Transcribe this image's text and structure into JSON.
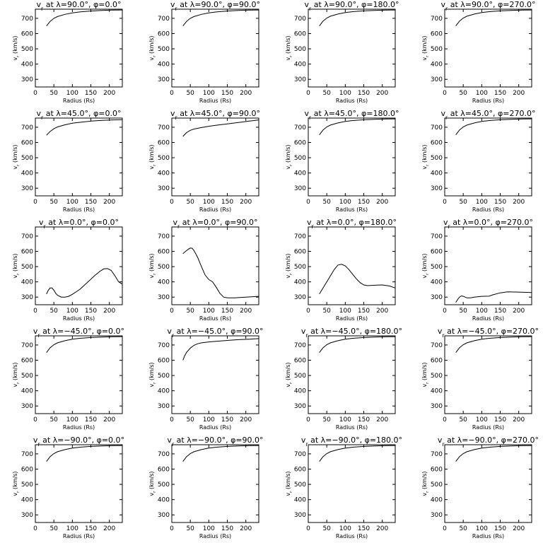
{
  "chart_data": [
    {
      "type": "line",
      "title": "v<sub>r</sub> at λ=90.0°, φ=0.0°",
      "title_parts": [
        "v",
        "r",
        " at λ=90.0°, φ=0.0°"
      ],
      "xlabel": "Radius (Rs)",
      "ylabel": "v<sub>r</sub> (km/s)",
      "ylabel_parts": [
        "v",
        "r",
        " (km/s)"
      ],
      "xlim": [
        0,
        235
      ],
      "ylim": [
        250,
        760
      ],
      "xticks": [
        0,
        50,
        100,
        150,
        200
      ],
      "yticks": [
        300,
        400,
        500,
        600,
        700
      ],
      "x": [
        30,
        40,
        50,
        60,
        80,
        100,
        120,
        150,
        180,
        210,
        235
      ],
      "y": [
        650,
        680,
        700,
        712,
        726,
        736,
        742,
        748,
        752,
        754,
        755
      ]
    },
    {
      "type": "line",
      "title": "",
      "title_parts": [
        "v",
        "r",
        " at λ=90.0°, φ=90.0°"
      ],
      "xlabel": "Radius (Rs)",
      "ylabel_parts": [
        "v",
        "r",
        " (km/s)"
      ],
      "xlim": [
        0,
        235
      ],
      "ylim": [
        250,
        760
      ],
      "xticks": [
        0,
        50,
        100,
        150,
        200
      ],
      "yticks": [
        300,
        400,
        500,
        600,
        700
      ],
      "x": [
        30,
        40,
        50,
        60,
        80,
        100,
        120,
        150,
        180,
        210,
        235
      ],
      "y": [
        650,
        680,
        700,
        712,
        726,
        736,
        742,
        748,
        752,
        754,
        755
      ]
    },
    {
      "type": "line",
      "title_parts": [
        "v",
        "r",
        " at λ=90.0°, φ=180.0°"
      ],
      "xlabel": "Radius (Rs)",
      "ylabel_parts": [
        "v",
        "r",
        " (km/s)"
      ],
      "xlim": [
        0,
        235
      ],
      "ylim": [
        250,
        760
      ],
      "xticks": [
        0,
        50,
        100,
        150,
        200
      ],
      "yticks": [
        300,
        400,
        500,
        600,
        700
      ],
      "x": [
        30,
        40,
        50,
        60,
        80,
        100,
        120,
        150,
        180,
        210,
        235
      ],
      "y": [
        650,
        682,
        702,
        714,
        728,
        738,
        744,
        749,
        752,
        754,
        755
      ]
    },
    {
      "type": "line",
      "title_parts": [
        "v",
        "r",
        " at λ=90.0°, φ=270.0°"
      ],
      "xlabel": "Radius (Rs)",
      "ylabel_parts": [
        "v",
        "r",
        " (km/s)"
      ],
      "xlim": [
        0,
        235
      ],
      "ylim": [
        250,
        760
      ],
      "xticks": [
        0,
        50,
        100,
        150,
        200
      ],
      "yticks": [
        300,
        400,
        500,
        600,
        700
      ],
      "x": [
        30,
        40,
        50,
        60,
        80,
        100,
        120,
        150,
        180,
        210,
        235
      ],
      "y": [
        650,
        682,
        702,
        714,
        728,
        738,
        744,
        749,
        752,
        754,
        755
      ]
    },
    {
      "type": "line",
      "title_parts": [
        "v",
        "r",
        " at λ=45.0°, φ=0.0°"
      ],
      "xlabel": "Radius (Rs)",
      "ylabel_parts": [
        "v",
        "r",
        " (km/s)"
      ],
      "xlim": [
        0,
        235
      ],
      "ylim": [
        250,
        760
      ],
      "xticks": [
        0,
        50,
        100,
        150,
        200
      ],
      "yticks": [
        300,
        400,
        500,
        600,
        700
      ],
      "x": [
        30,
        40,
        50,
        60,
        80,
        100,
        120,
        150,
        180,
        210,
        235
      ],
      "y": [
        648,
        672,
        690,
        702,
        716,
        726,
        732,
        740,
        745,
        748,
        750
      ]
    },
    {
      "type": "line",
      "title_parts": [
        "v",
        "r",
        " at λ=45.0°, φ=90.0°"
      ],
      "xlabel": "Radius (Rs)",
      "ylabel_parts": [
        "v",
        "r",
        " (km/s)"
      ],
      "xlim": [
        0,
        235
      ],
      "ylim": [
        250,
        760
      ],
      "xticks": [
        0,
        50,
        100,
        150,
        200
      ],
      "yticks": [
        300,
        400,
        500,
        600,
        700
      ],
      "x": [
        30,
        40,
        50,
        60,
        80,
        100,
        120,
        150,
        180,
        210,
        235
      ],
      "y": [
        640,
        665,
        680,
        688,
        698,
        706,
        713,
        722,
        731,
        740,
        748
      ]
    },
    {
      "type": "line",
      "title_parts": [
        "v",
        "r",
        " at λ=45.0°, φ=180.0°"
      ],
      "xlabel": "Radius (Rs)",
      "ylabel_parts": [
        "v",
        "r",
        " (km/s)"
      ],
      "xlim": [
        0,
        235
      ],
      "ylim": [
        250,
        760
      ],
      "xticks": [
        0,
        50,
        100,
        150,
        200
      ],
      "yticks": [
        300,
        400,
        500,
        600,
        700
      ],
      "x": [
        30,
        40,
        50,
        60,
        80,
        100,
        120,
        150,
        180,
        210,
        235
      ],
      "y": [
        650,
        682,
        702,
        714,
        728,
        738,
        744,
        749,
        752,
        754,
        755
      ]
    },
    {
      "type": "line",
      "title_parts": [
        "v",
        "r",
        " at λ=45.0°, φ=270.0°"
      ],
      "xlabel": "Radius (Rs)",
      "ylabel_parts": [
        "v",
        "r",
        " (km/s)"
      ],
      "xlim": [
        0,
        235
      ],
      "ylim": [
        250,
        760
      ],
      "xticks": [
        0,
        50,
        100,
        150,
        200
      ],
      "yticks": [
        300,
        400,
        500,
        600,
        700
      ],
      "x": [
        30,
        40,
        50,
        60,
        80,
        100,
        120,
        150,
        180,
        210,
        235
      ],
      "y": [
        650,
        682,
        702,
        714,
        728,
        738,
        744,
        749,
        752,
        754,
        755
      ]
    },
    {
      "type": "line",
      "title_parts": [
        "v",
        "r",
        " at λ=0.0°, φ=0.0°"
      ],
      "xlabel": "Radius (Rs)",
      "ylabel_parts": [
        "v",
        "r",
        " (km/s)"
      ],
      "xlim": [
        0,
        235
      ],
      "ylim": [
        250,
        760
      ],
      "xticks": [
        0,
        50,
        100,
        150,
        200
      ],
      "yticks": [
        300,
        400,
        500,
        600,
        700
      ],
      "x": [
        30,
        35,
        40,
        45,
        50,
        55,
        60,
        70,
        80,
        90,
        100,
        120,
        140,
        160,
        175,
        185,
        195,
        205,
        215,
        225,
        235
      ],
      "y": [
        320,
        345,
        360,
        360,
        345,
        325,
        312,
        300,
        300,
        305,
        318,
        350,
        395,
        440,
        470,
        485,
        487,
        475,
        440,
        400,
        385
      ]
    },
    {
      "type": "line",
      "title_parts": [
        "v",
        "r",
        " at λ=0.0°, φ=90.0°"
      ],
      "xlabel": "Radius (Rs)",
      "ylabel_parts": [
        "v",
        "r",
        " (km/s)"
      ],
      "xlim": [
        0,
        235
      ],
      "ylim": [
        250,
        760
      ],
      "xticks": [
        0,
        50,
        100,
        150,
        200
      ],
      "yticks": [
        300,
        400,
        500,
        600,
        700
      ],
      "x": [
        30,
        40,
        45,
        50,
        55,
        60,
        70,
        80,
        90,
        100,
        110,
        120,
        130,
        140,
        150,
        170,
        200,
        235
      ],
      "y": [
        585,
        605,
        615,
        622,
        620,
        605,
        560,
        500,
        445,
        415,
        400,
        365,
        325,
        300,
        295,
        295,
        300,
        305
      ]
    },
    {
      "type": "line",
      "title_parts": [
        "v",
        "r",
        " at λ=0.0°, φ=180.0°"
      ],
      "xlabel": "Radius (Rs)",
      "ylabel_parts": [
        "v",
        "r",
        " (km/s)"
      ],
      "xlim": [
        0,
        235
      ],
      "ylim": [
        250,
        760
      ],
      "xticks": [
        0,
        50,
        100,
        150,
        200
      ],
      "yticks": [
        300,
        400,
        500,
        600,
        700
      ],
      "x": [
        30,
        40,
        50,
        60,
        70,
        80,
        90,
        100,
        110,
        120,
        130,
        140,
        150,
        160,
        180,
        200,
        220,
        235
      ],
      "y": [
        320,
        360,
        400,
        440,
        480,
        510,
        515,
        505,
        480,
        450,
        420,
        395,
        380,
        375,
        378,
        380,
        373,
        360
      ]
    },
    {
      "type": "line",
      "title_parts": [
        "v",
        "r",
        " at λ=0.0°, φ=270.0°"
      ],
      "xlabel": "Radius (Rs)",
      "ylabel_parts": [
        "v",
        "r",
        " (km/s)"
      ],
      "xlim": [
        0,
        235
      ],
      "ylim": [
        250,
        760
      ],
      "xticks": [
        0,
        50,
        100,
        150,
        200
      ],
      "yticks": [
        300,
        400,
        500,
        600,
        700
      ],
      "x": [
        30,
        35,
        40,
        45,
        50,
        60,
        70,
        80,
        100,
        120,
        130,
        150,
        170,
        200,
        235
      ],
      "y": [
        265,
        285,
        300,
        308,
        305,
        295,
        295,
        300,
        305,
        306,
        315,
        328,
        335,
        333,
        330
      ]
    },
    {
      "type": "line",
      "title_parts": [
        "v",
        "r",
        " at λ=−45.0°, φ=0.0°"
      ],
      "xlabel": "Radius (Rs)",
      "ylabel_parts": [
        "v",
        "r",
        " (km/s)"
      ],
      "xlim": [
        0,
        235
      ],
      "ylim": [
        250,
        760
      ],
      "xticks": [
        0,
        50,
        100,
        150,
        200
      ],
      "yticks": [
        300,
        400,
        500,
        600,
        700
      ],
      "x": [
        30,
        40,
        50,
        60,
        80,
        100,
        120,
        150,
        180,
        210,
        235
      ],
      "y": [
        650,
        682,
        702,
        714,
        728,
        738,
        744,
        749,
        752,
        754,
        755
      ]
    },
    {
      "type": "line",
      "title_parts": [
        "v",
        "r",
        " at λ=−45.0°, φ=90.0°"
      ],
      "xlabel": "Radius (Rs)",
      "ylabel_parts": [
        "v",
        "r",
        " (km/s)"
      ],
      "xlim": [
        0,
        235
      ],
      "ylim": [
        250,
        760
      ],
      "xticks": [
        0,
        50,
        100,
        150,
        200
      ],
      "yticks": [
        300,
        400,
        500,
        600,
        700
      ],
      "x": [
        30,
        35,
        40,
        50,
        60,
        70,
        80,
        100,
        120,
        150,
        180,
        210,
        235
      ],
      "y": [
        600,
        630,
        652,
        680,
        698,
        708,
        714,
        720,
        724,
        730,
        735,
        738,
        742
      ]
    },
    {
      "type": "line",
      "title_parts": [
        "v",
        "r",
        " at λ=−45.0°, φ=180.0°"
      ],
      "xlabel": "Radius (Rs)",
      "ylabel_parts": [
        "v",
        "r",
        " (km/s)"
      ],
      "xlim": [
        0,
        235
      ],
      "ylim": [
        250,
        760
      ],
      "xticks": [
        0,
        50,
        100,
        150,
        200
      ],
      "yticks": [
        300,
        400,
        500,
        600,
        700
      ],
      "x": [
        30,
        40,
        50,
        60,
        80,
        100,
        120,
        150,
        180,
        210,
        235
      ],
      "y": [
        650,
        682,
        702,
        714,
        728,
        738,
        744,
        749,
        752,
        754,
        755
      ]
    },
    {
      "type": "line",
      "title_parts": [
        "v",
        "r",
        " at λ=−45.0°, φ=270.0°"
      ],
      "xlabel": "Radius (Rs)",
      "ylabel_parts": [
        "v",
        "r",
        " (km/s)"
      ],
      "xlim": [
        0,
        235
      ],
      "ylim": [
        250,
        760
      ],
      "xticks": [
        0,
        50,
        100,
        150,
        200
      ],
      "yticks": [
        300,
        400,
        500,
        600,
        700
      ],
      "x": [
        30,
        40,
        50,
        60,
        80,
        100,
        120,
        150,
        180,
        210,
        235
      ],
      "y": [
        650,
        682,
        702,
        714,
        728,
        738,
        744,
        749,
        752,
        754,
        755
      ]
    },
    {
      "type": "line",
      "title_parts": [
        "v",
        "r",
        " at λ=−90.0°, φ=0.0°"
      ],
      "xlabel": "Radius (Rs)",
      "ylabel_parts": [
        "v",
        "r",
        " (km/s)"
      ],
      "xlim": [
        0,
        235
      ],
      "ylim": [
        250,
        760
      ],
      "xticks": [
        0,
        50,
        100,
        150,
        200
      ],
      "yticks": [
        300,
        400,
        500,
        600,
        700
      ],
      "x": [
        30,
        40,
        50,
        60,
        80,
        100,
        120,
        150,
        180,
        210,
        235
      ],
      "y": [
        650,
        682,
        702,
        714,
        728,
        738,
        744,
        749,
        752,
        754,
        755
      ]
    },
    {
      "type": "line",
      "title_parts": [
        "v",
        "r",
        " at λ=−90.0°, φ=90.0°"
      ],
      "xlabel": "Radius (Rs)",
      "ylabel_parts": [
        "v",
        "r",
        " (km/s)"
      ],
      "xlim": [
        0,
        235
      ],
      "ylim": [
        250,
        760
      ],
      "xticks": [
        0,
        50,
        100,
        150,
        200
      ],
      "yticks": [
        300,
        400,
        500,
        600,
        700
      ],
      "x": [
        30,
        40,
        50,
        60,
        80,
        100,
        120,
        150,
        180,
        210,
        235
      ],
      "y": [
        650,
        682,
        702,
        714,
        728,
        738,
        744,
        749,
        752,
        754,
        755
      ]
    },
    {
      "type": "line",
      "title_parts": [
        "v",
        "r",
        " at λ=−90.0°, φ=180.0°"
      ],
      "xlabel": "Radius (Rs)",
      "ylabel_parts": [
        "v",
        "r",
        " (km/s)"
      ],
      "xlim": [
        0,
        235
      ],
      "ylim": [
        250,
        760
      ],
      "xticks": [
        0,
        50,
        100,
        150,
        200
      ],
      "yticks": [
        300,
        400,
        500,
        600,
        700
      ],
      "x": [
        30,
        40,
        50,
        60,
        80,
        100,
        120,
        150,
        180,
        210,
        235
      ],
      "y": [
        650,
        682,
        702,
        714,
        728,
        738,
        744,
        749,
        752,
        754,
        755
      ]
    },
    {
      "type": "line",
      "title_parts": [
        "v",
        "r",
        " at λ=−90.0°, φ=270.0°"
      ],
      "xlabel": "Radius (Rs)",
      "ylabel_parts": [
        "v",
        "r",
        " (km/s)"
      ],
      "xlim": [
        0,
        235
      ],
      "ylim": [
        250,
        760
      ],
      "xticks": [
        0,
        50,
        100,
        150,
        200
      ],
      "yticks": [
        300,
        400,
        500,
        600,
        700
      ],
      "x": [
        30,
        40,
        50,
        60,
        80,
        100,
        120,
        150,
        180,
        210,
        235
      ],
      "y": [
        650,
        682,
        702,
        714,
        728,
        738,
        744,
        749,
        752,
        754,
        755
      ]
    }
  ]
}
